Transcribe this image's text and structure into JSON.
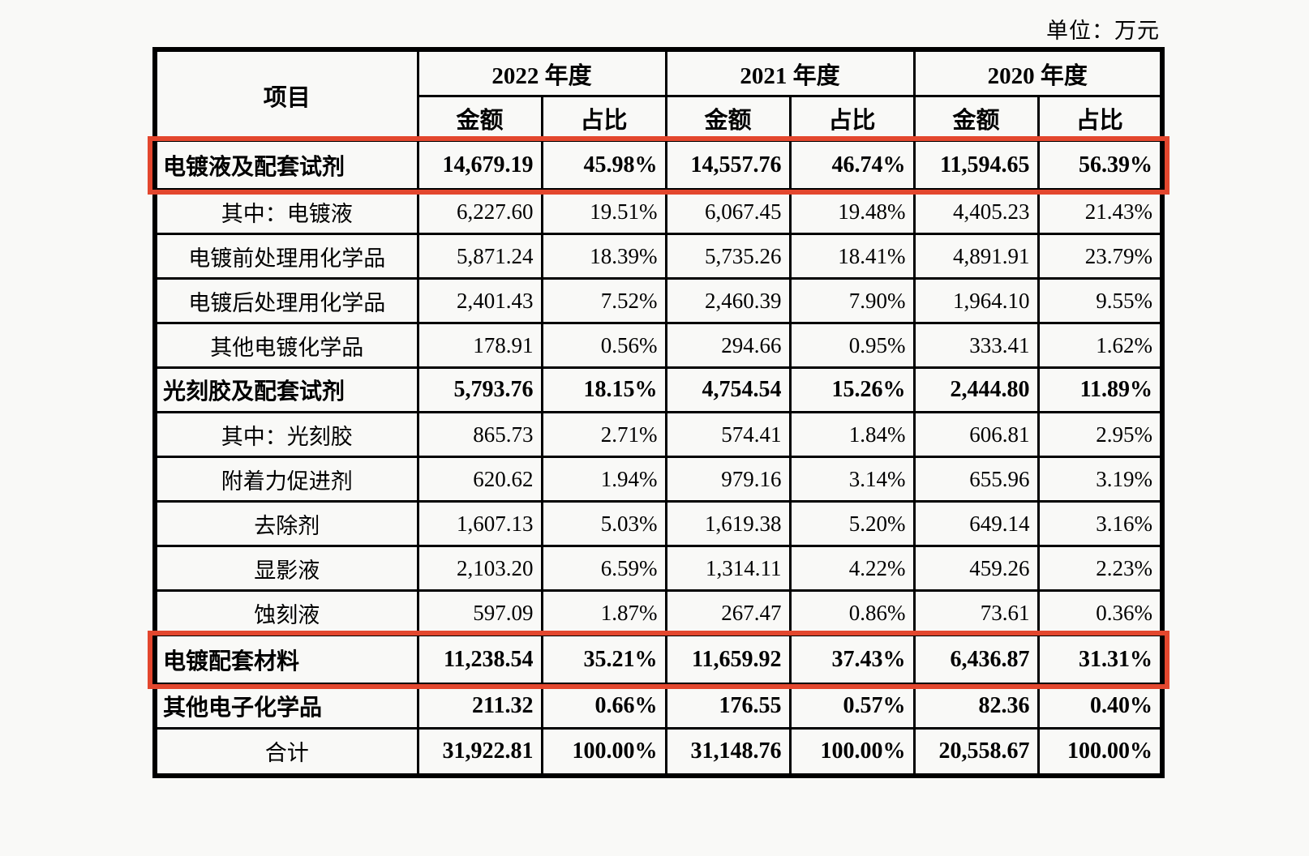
{
  "unit_label": "单位：万元",
  "highlight_color": "#e3472e",
  "table": {
    "item_header": "项目",
    "year_groups": [
      {
        "label": "2022 年度"
      },
      {
        "label": "2021 年度"
      },
      {
        "label": "2020 年度"
      }
    ],
    "amount_header": "金额",
    "ratio_header": "占比",
    "rows": [
      {
        "label": "电镀液及配套试剂",
        "bold": true,
        "labelAlign": "left",
        "highlight": true,
        "valuesBold": true,
        "values": [
          "14,679.19",
          "45.98%",
          "14,557.76",
          "46.74%",
          "11,594.65",
          "56.39%"
        ]
      },
      {
        "label": "其中：电镀液",
        "bold": false,
        "labelAlign": "center",
        "highlight": false,
        "valuesBold": false,
        "values": [
          "6,227.60",
          "19.51%",
          "6,067.45",
          "19.48%",
          "4,405.23",
          "21.43%"
        ]
      },
      {
        "label": "电镀前处理用化学品",
        "bold": false,
        "labelAlign": "center",
        "highlight": false,
        "valuesBold": false,
        "values": [
          "5,871.24",
          "18.39%",
          "5,735.26",
          "18.41%",
          "4,891.91",
          "23.79%"
        ]
      },
      {
        "label": "电镀后处理用化学品",
        "bold": false,
        "labelAlign": "center",
        "highlight": false,
        "valuesBold": false,
        "values": [
          "2,401.43",
          "7.52%",
          "2,460.39",
          "7.90%",
          "1,964.10",
          "9.55%"
        ]
      },
      {
        "label": "其他电镀化学品",
        "bold": false,
        "labelAlign": "center",
        "highlight": false,
        "valuesBold": false,
        "values": [
          "178.91",
          "0.56%",
          "294.66",
          "0.95%",
          "333.41",
          "1.62%"
        ]
      },
      {
        "label": "光刻胶及配套试剂",
        "bold": true,
        "labelAlign": "left",
        "highlight": false,
        "valuesBold": true,
        "values": [
          "5,793.76",
          "18.15%",
          "4,754.54",
          "15.26%",
          "2,444.80",
          "11.89%"
        ]
      },
      {
        "label": "其中：光刻胶",
        "bold": false,
        "labelAlign": "center",
        "highlight": false,
        "valuesBold": false,
        "values": [
          "865.73",
          "2.71%",
          "574.41",
          "1.84%",
          "606.81",
          "2.95%"
        ]
      },
      {
        "label": "附着力促进剂",
        "bold": false,
        "labelAlign": "center",
        "highlight": false,
        "valuesBold": false,
        "values": [
          "620.62",
          "1.94%",
          "979.16",
          "3.14%",
          "655.96",
          "3.19%"
        ]
      },
      {
        "label": "去除剂",
        "bold": false,
        "labelAlign": "center",
        "highlight": false,
        "valuesBold": false,
        "values": [
          "1,607.13",
          "5.03%",
          "1,619.38",
          "5.20%",
          "649.14",
          "3.16%"
        ]
      },
      {
        "label": "显影液",
        "bold": false,
        "labelAlign": "center",
        "highlight": false,
        "valuesBold": false,
        "values": [
          "2,103.20",
          "6.59%",
          "1,314.11",
          "4.22%",
          "459.26",
          "2.23%"
        ]
      },
      {
        "label": "蚀刻液",
        "bold": false,
        "labelAlign": "center",
        "highlight": false,
        "valuesBold": false,
        "values": [
          "597.09",
          "1.87%",
          "267.47",
          "0.86%",
          "73.61",
          "0.36%"
        ]
      },
      {
        "label": "电镀配套材料",
        "bold": true,
        "labelAlign": "left",
        "highlight": true,
        "valuesBold": true,
        "values": [
          "11,238.54",
          "35.21%",
          "11,659.92",
          "37.43%",
          "6,436.87",
          "31.31%"
        ]
      },
      {
        "label": "其他电子化学品",
        "bold": true,
        "labelAlign": "left",
        "highlight": false,
        "valuesBold": true,
        "values": [
          "211.32",
          "0.66%",
          "176.55",
          "0.57%",
          "82.36",
          "0.40%"
        ]
      },
      {
        "label": "合计",
        "bold": false,
        "labelAlign": "center",
        "highlight": false,
        "valuesBold": true,
        "values": [
          "31,922.81",
          "100.00%",
          "31,148.76",
          "100.00%",
          "20,558.67",
          "100.00%"
        ]
      }
    ]
  }
}
